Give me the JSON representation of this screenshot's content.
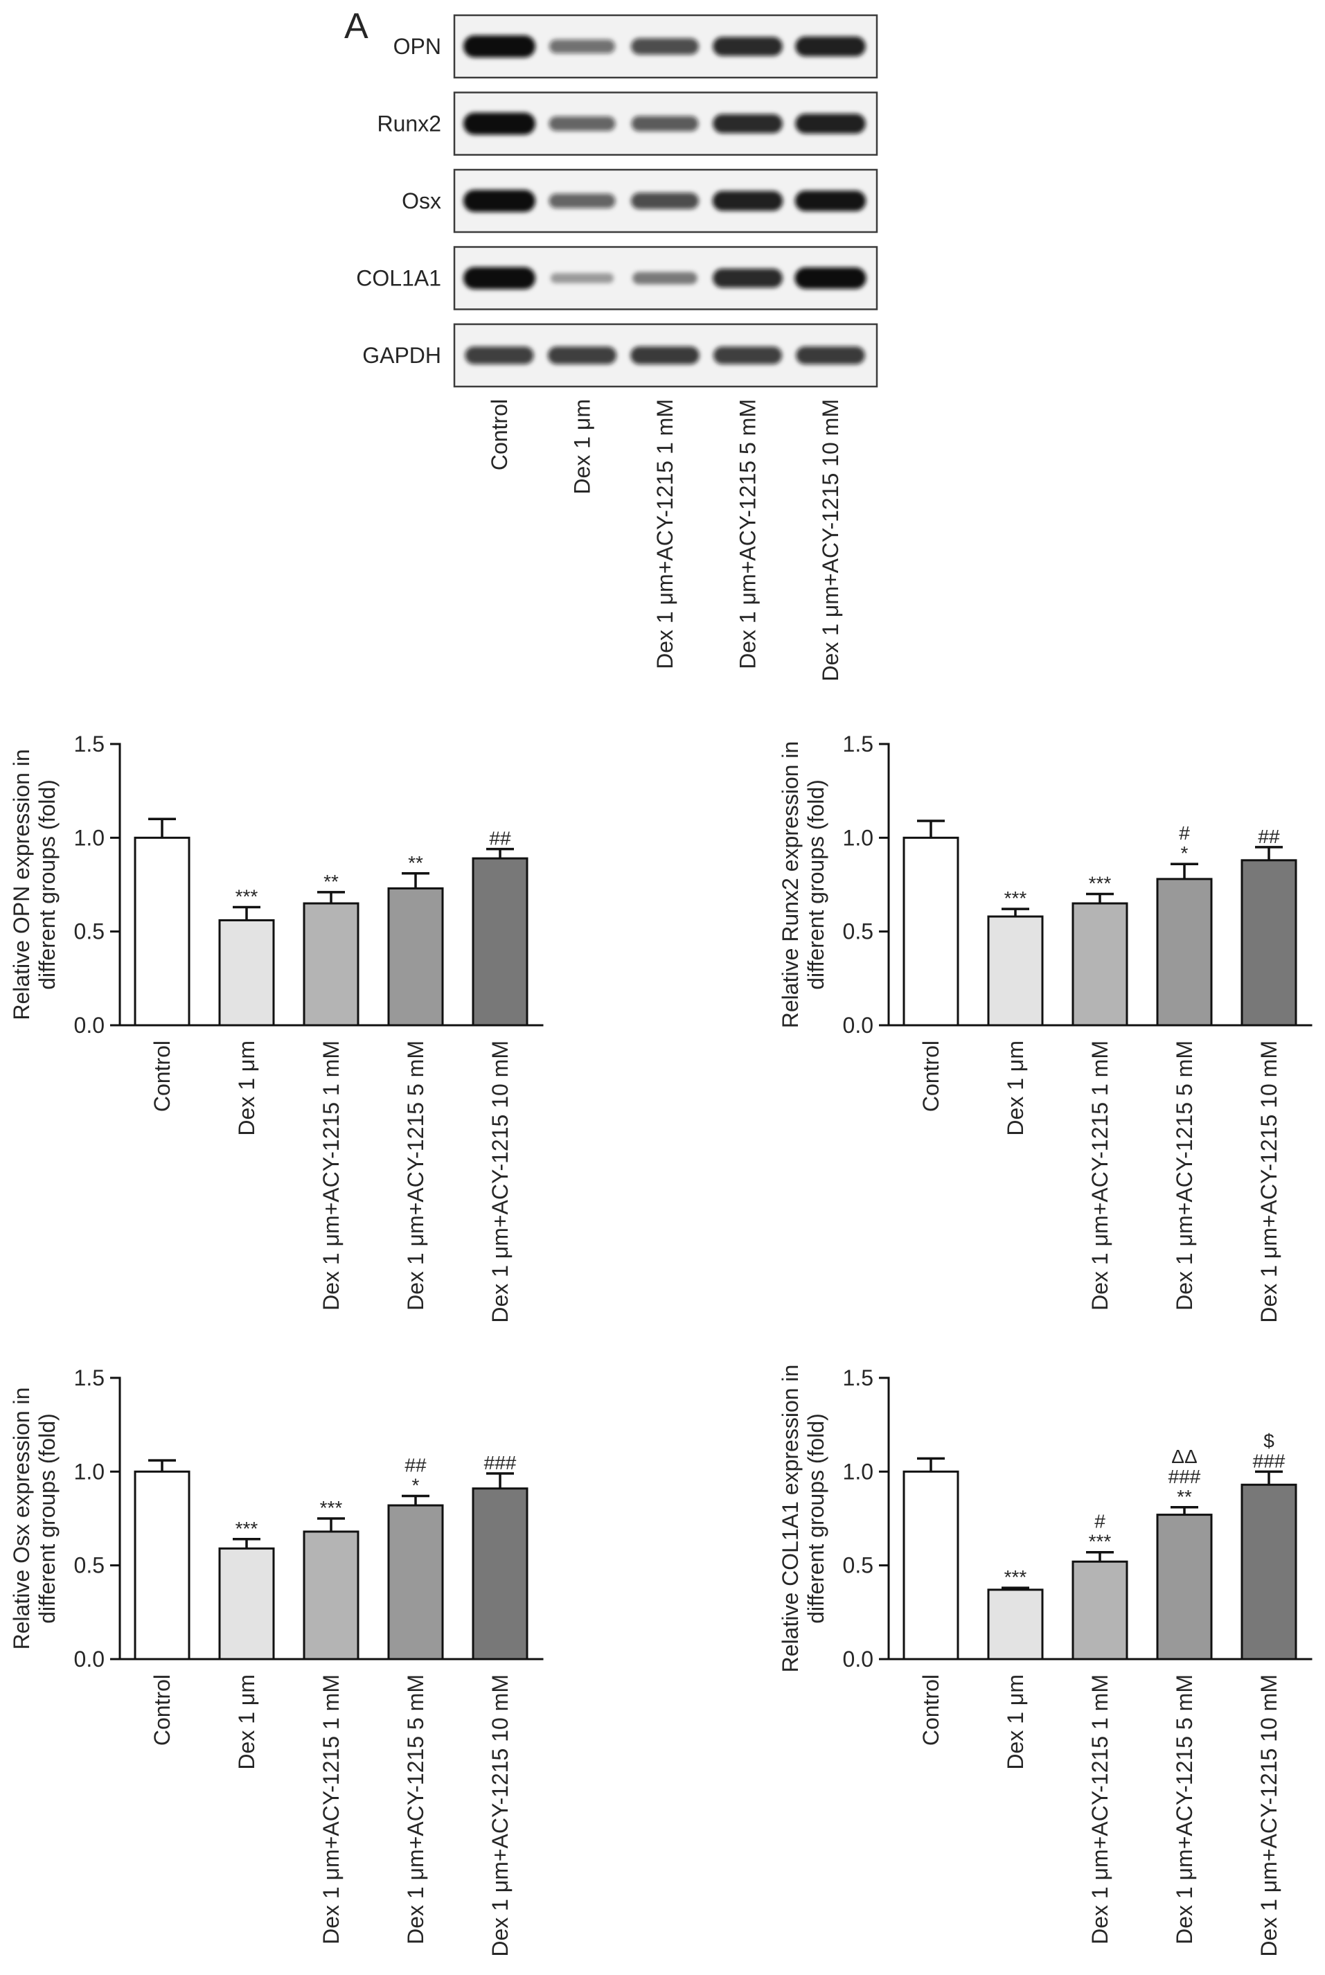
{
  "figure": {
    "panel_label": "A"
  },
  "colors": {
    "bar_fills": [
      "#ffffff",
      "#e3e3e3",
      "#b4b4b4",
      "#999999",
      "#787878"
    ],
    "axis": "#111111",
    "band": "#0c0c0c",
    "blot_background": "#f2f2f2",
    "blot_border": "#3c3c3c"
  },
  "blot": {
    "rows": [
      {
        "label": "OPN",
        "band_intensity": [
          1.0,
          0.45,
          0.62,
          0.8,
          0.85
        ]
      },
      {
        "label": "Runx2",
        "band_intensity": [
          1.0,
          0.5,
          0.55,
          0.8,
          0.85
        ]
      },
      {
        "label": "Osx",
        "band_intensity": [
          1.0,
          0.5,
          0.62,
          0.85,
          0.9
        ]
      },
      {
        "label": "COL1A1",
        "band_intensity": [
          1.0,
          0.2,
          0.35,
          0.8,
          0.95
        ]
      },
      {
        "label": "GAPDH",
        "band_intensity": [
          0.7,
          0.7,
          0.72,
          0.7,
          0.72
        ]
      }
    ],
    "lanes": [
      "Control",
      "Dex 1 μm",
      "Dex 1 μm+ACY-1215 1 mM",
      "Dex 1 μm+ACY-1215 5 mM",
      "Dex 1 μm+ACY-1215 10 mM"
    ]
  },
  "chart_data": [
    {
      "type": "bar",
      "ylabel": [
        "Relative OPN expression in",
        "different groups (fold)"
      ],
      "categories": [
        "Control",
        "Dex 1 μm",
        "Dex 1 μm+ACY-1215 1 mM",
        "Dex 1 μm+ACY-1215 5 mM",
        "Dex 1 μm+ACY-1215 10 mM"
      ],
      "values": [
        1.0,
        0.56,
        0.65,
        0.73,
        0.89
      ],
      "error": [
        0.1,
        0.07,
        0.06,
        0.08,
        0.05
      ],
      "annotations": [
        [],
        [
          "***"
        ],
        [
          "**"
        ],
        [
          "**"
        ],
        [
          "##"
        ]
      ],
      "ylim": [
        0,
        1.5
      ],
      "yticks": [
        0,
        0.5,
        1.0,
        1.5
      ],
      "ytick_labels": [
        "0.0",
        "0.5",
        "1.0",
        "1.5"
      ],
      "grid": false
    },
    {
      "type": "bar",
      "ylabel": [
        "Relative Runx2 expression in",
        "different groups (fold)"
      ],
      "categories": [
        "Control",
        "Dex 1 μm",
        "Dex 1 μm+ACY-1215 1 mM",
        "Dex 1 μm+ACY-1215 5 mM",
        "Dex 1 μm+ACY-1215 10 mM"
      ],
      "values": [
        1.0,
        0.58,
        0.65,
        0.78,
        0.88
      ],
      "error": [
        0.09,
        0.04,
        0.05,
        0.08,
        0.07
      ],
      "annotations": [
        [],
        [
          "***"
        ],
        [
          "***"
        ],
        [
          "#",
          "*"
        ],
        [
          "##"
        ]
      ],
      "ylim": [
        0,
        1.5
      ],
      "yticks": [
        0,
        0.5,
        1.0,
        1.5
      ],
      "ytick_labels": [
        "0.0",
        "0.5",
        "1.0",
        "1.5"
      ],
      "grid": false
    },
    {
      "type": "bar",
      "ylabel": [
        "Relative Osx expression in",
        "different groups (fold)"
      ],
      "categories": [
        "Control",
        "Dex 1 μm",
        "Dex 1 μm+ACY-1215 1 mM",
        "Dex 1 μm+ACY-1215 5 mM",
        "Dex 1 μm+ACY-1215 10 mM"
      ],
      "values": [
        1.0,
        0.59,
        0.68,
        0.82,
        0.91
      ],
      "error": [
        0.06,
        0.05,
        0.07,
        0.05,
        0.08
      ],
      "annotations": [
        [],
        [
          "***"
        ],
        [
          "***"
        ],
        [
          "##",
          "*"
        ],
        [
          "###"
        ]
      ],
      "ylim": [
        0,
        1.5
      ],
      "yticks": [
        0,
        0.5,
        1.0,
        1.5
      ],
      "ytick_labels": [
        "0.0",
        "0.5",
        "1.0",
        "1.5"
      ],
      "grid": false
    },
    {
      "type": "bar",
      "ylabel": [
        "Relative COL1A1 expression in",
        "different groups (fold)"
      ],
      "categories": [
        "Control",
        "Dex 1 μm",
        "Dex 1 μm+ACY-1215 1 mM",
        "Dex 1 μm+ACY-1215 5 mM",
        "Dex 1 μm+ACY-1215 10 mM"
      ],
      "values": [
        1.0,
        0.37,
        0.52,
        0.77,
        0.93
      ],
      "error": [
        0.07,
        0.01,
        0.05,
        0.04,
        0.07
      ],
      "annotations": [
        [],
        [
          "***"
        ],
        [
          "#",
          "***"
        ],
        [
          "ΔΔ",
          "###",
          "**"
        ],
        [
          "$",
          "###"
        ]
      ],
      "ylim": [
        0,
        1.5
      ],
      "yticks": [
        0,
        0.5,
        1.0,
        1.5
      ],
      "ytick_labels": [
        "0.0",
        "0.5",
        "1.0",
        "1.5"
      ],
      "grid": false
    }
  ]
}
